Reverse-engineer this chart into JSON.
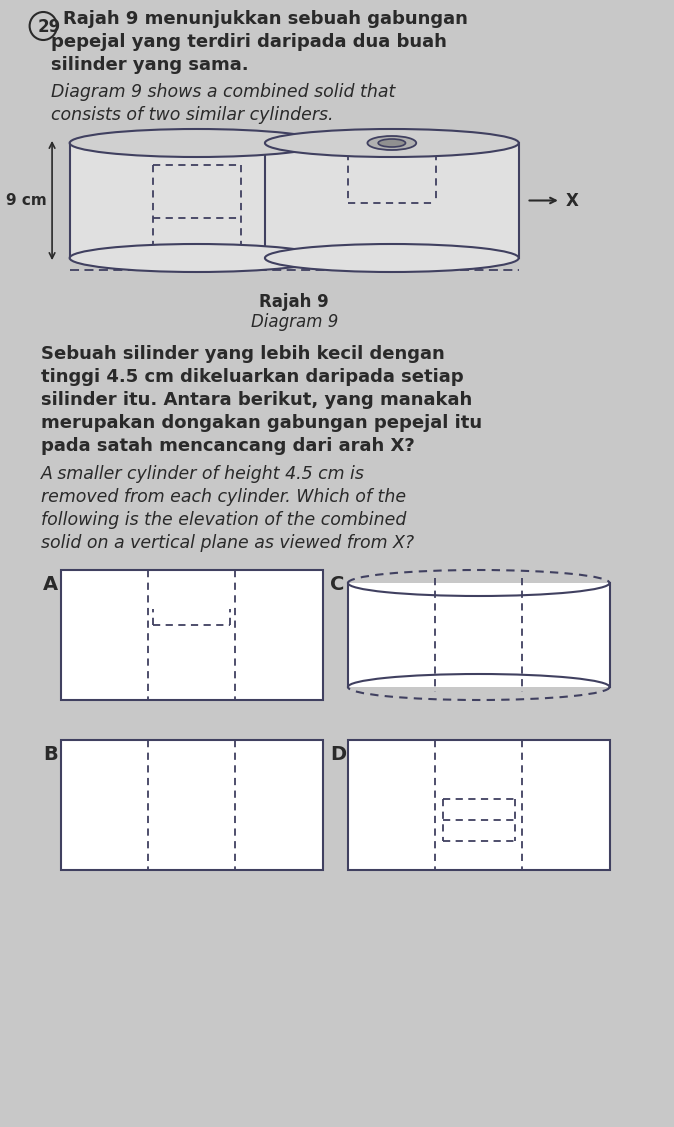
{
  "bg_color": "#c8c8c8",
  "text_color_dark": "#2a2a2a",
  "text_color_blue": "#3a5a8a",
  "line_color": "#404060",
  "question_number": "29",
  "malay_line1": "Rajah 9 menunjukkan sebuah gabungan",
  "malay_line2": "pepejal yang terdiri daripada dua buah",
  "malay_line3": "silinder yang sama.",
  "eng_line1": "Diagram 9 shows a combined solid that",
  "eng_line2": "consists of two similar cylinders.",
  "q_malay1": "Sebuah silinder yang lebih kecil dengan",
  "q_malay2": "tinggi 4.5 cm dikeluarkan daripada setiap",
  "q_malay3": "silinder itu. Antara berikut, yang manakah",
  "q_malay4": "merupakan dongakan gabungan pepejal itu",
  "q_malay5": "pada satah mencancang dari arah X?",
  "q_eng1": "A smaller cylinder of height 4.5 cm is",
  "q_eng2": "removed from each cylinder. Which of the",
  "q_eng3": "following is the elevation of the combined",
  "q_eng4": "solid on a vertical plane as viewed from X?",
  "cap_malay": "Rajah 9",
  "cap_eng": "Diagram 9",
  "height_label": "9 cm",
  "x_label": "X"
}
